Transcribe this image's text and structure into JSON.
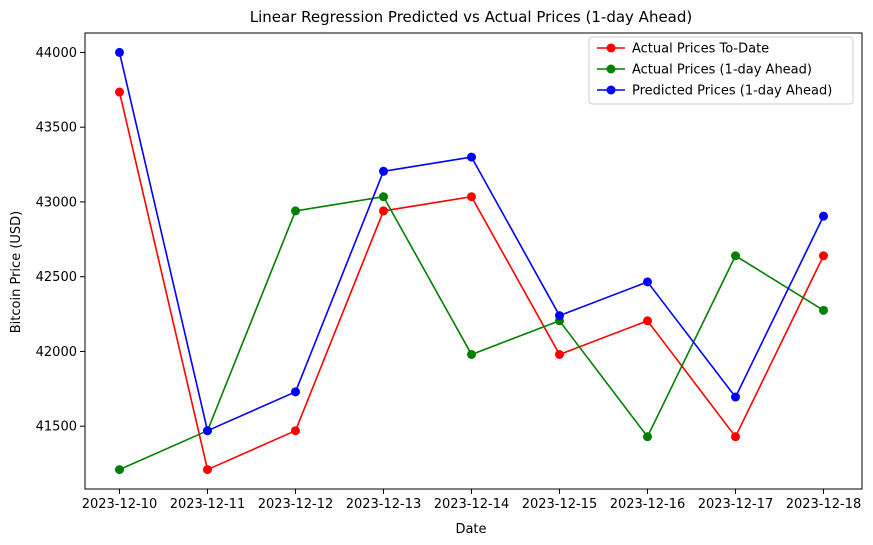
{
  "chart_data": {
    "type": "line",
    "title": "Linear Regression Predicted vs Actual Prices (1-day Ahead)",
    "xlabel": "Date",
    "ylabel": "Bitcoin Price (USD)",
    "categories": [
      "2023-12-10",
      "2023-12-11",
      "2023-12-12",
      "2023-12-13",
      "2023-12-14",
      "2023-12-15",
      "2023-12-16",
      "2023-12-17",
      "2023-12-18"
    ],
    "yticks": [
      41500,
      42000,
      42500,
      43000,
      43500,
      44000
    ],
    "ylim": [
      41080,
      44130
    ],
    "grid": false,
    "legend_position": "top-right",
    "series": [
      {
        "name": "Actual Prices To-Date",
        "color": "#ff0000",
        "values": [
          43735,
          41210,
          41470,
          42940,
          43035,
          41980,
          42205,
          41430,
          42640
        ]
      },
      {
        "name": "Actual Prices (1-day Ahead)",
        "color": "#008000",
        "values": [
          41210,
          41470,
          42940,
          43035,
          41980,
          42205,
          41430,
          42640,
          42275
        ]
      },
      {
        "name": "Predicted Prices (1-day Ahead)",
        "color": "#0000ff",
        "values": [
          44000,
          41470,
          41730,
          43205,
          43300,
          42240,
          42465,
          41695,
          42905
        ]
      }
    ]
  }
}
